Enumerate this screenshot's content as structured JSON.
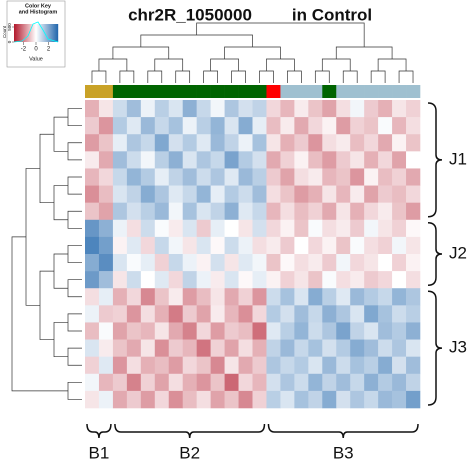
{
  "chart_data": {
    "type": "heatmap",
    "title": "chr2R_1050000",
    "subtitle": "in Control",
    "key": {
      "title": [
        "Color Key",
        "and Histogram"
      ],
      "xlabel": "Value",
      "ylabel": "Count",
      "ticks": [
        -2,
        0,
        2
      ],
      "count_ylim": [
        0,
        600
      ],
      "count_ticks": [
        0,
        500
      ]
    },
    "zlim": [
      -3.5,
      3.5
    ],
    "colors": [
      "#b2182b",
      "#ffffff",
      "#2166ac"
    ],
    "column_colors": [
      "#c9a227",
      "#c9a227",
      "#006400",
      "#006400",
      "#006400",
      "#006400",
      "#006400",
      "#006400",
      "#006400",
      "#006400",
      "#006400",
      "#006400",
      "#006400",
      "#ff0000",
      "#9fc0d0",
      "#9fc0d0",
      "#9fc0d0",
      "#006400",
      "#9fc0d0",
      "#9fc0d0",
      "#9fc0d0",
      "#9fc0d0",
      "#9fc0d0",
      "#9fc0d0"
    ],
    "row_groups": [
      "J1",
      "J2",
      "J3"
    ],
    "column_groups": [
      "B1",
      "B2",
      "B3"
    ],
    "values": [
      [
        -1.2,
        -0.4,
        0.8,
        1.5,
        0.3,
        1.1,
        0.6,
        1.8,
        0.9,
        0.2,
        1.3,
        0.7,
        1.0,
        -0.6,
        -1.1,
        -0.3,
        -0.9,
        -1.4,
        -0.5,
        0.2,
        -0.8,
        -1.2,
        -0.4,
        -0.7
      ],
      [
        -0.8,
        -1.6,
        1.2,
        0.5,
        1.6,
        0.9,
        1.4,
        0.3,
        1.1,
        1.7,
        0.6,
        1.9,
        0.4,
        -1.0,
        -0.3,
        -1.3,
        -0.6,
        -0.2,
        -1.5,
        -0.7,
        -0.9,
        0.1,
        -1.1,
        -0.5
      ],
      [
        -1.5,
        -0.9,
        0.4,
        1.3,
        0.9,
        2.0,
        0.7,
        1.2,
        0.5,
        1.6,
        1.0,
        0.3,
        1.4,
        -0.4,
        -1.2,
        -0.8,
        -1.6,
        -0.5,
        -0.3,
        -1.0,
        -0.6,
        -1.3,
        -0.2,
        -0.9
      ],
      [
        -0.3,
        -1.3,
        1.5,
        0.8,
        0.2,
        1.1,
        1.8,
        0.6,
        1.3,
        0.9,
        2.1,
        1.2,
        0.7,
        -1.3,
        -0.7,
        -0.2,
        -1.0,
        -1.5,
        -0.8,
        -0.4,
        -1.2,
        -0.6,
        -1.4,
        0.0
      ],
      [
        -1.1,
        -0.6,
        0.9,
        1.7,
        1.2,
        0.4,
        1.0,
        1.5,
        0.8,
        1.3,
        0.5,
        1.6,
        1.1,
        -0.8,
        -1.4,
        -0.5,
        -0.3,
        -1.1,
        -0.9,
        -1.6,
        -0.2,
        -1.0,
        -0.7,
        -1.3
      ],
      [
        -1.7,
        -1.0,
        0.6,
        1.0,
        1.9,
        1.3,
        0.5,
        0.9,
        1.7,
        0.4,
        1.2,
        0.8,
        1.5,
        -0.5,
        -0.9,
        -1.5,
        -1.2,
        -0.4,
        -1.1,
        -0.3,
        -1.4,
        -0.8,
        -1.0,
        -0.6
      ],
      [
        -0.9,
        -1.4,
        1.3,
        0.7,
        1.1,
        1.6,
        0.2,
        1.4,
        0.6,
        1.0,
        1.8,
        0.5,
        0.9,
        -1.1,
        -0.5,
        -1.0,
        -0.7,
        -1.3,
        -0.4,
        -1.2,
        -0.6,
        -0.3,
        -0.9,
        -1.5
      ],
      [
        2.4,
        1.8,
        0.3,
        -0.5,
        0.8,
        0.1,
        -0.3,
        0.6,
        -0.8,
        0.4,
        0.0,
        -0.4,
        0.7,
        -0.6,
        -0.2,
        -0.9,
        0.1,
        -0.5,
        -0.3,
        -0.8,
        0.2,
        -0.4,
        -0.7,
        -0.1
      ],
      [
        2.8,
        2.2,
        -0.2,
        0.5,
        -0.6,
        0.9,
        0.2,
        -0.4,
        0.6,
        -0.1,
        0.8,
        0.3,
        -0.5,
        -0.3,
        -0.8,
        0.0,
        -0.6,
        -0.2,
        -0.9,
        0.1,
        -0.5,
        -0.7,
        0.2,
        -0.4
      ],
      [
        1.9,
        2.6,
        0.6,
        0.1,
        0.4,
        -0.7,
        0.9,
        0.3,
        -0.2,
        0.7,
        -0.4,
        0.5,
        0.2,
        -0.9,
        -0.1,
        -0.5,
        -0.3,
        -0.8,
        0.2,
        -0.6,
        -0.4,
        0.0,
        -0.7,
        -0.2
      ],
      [
        2.3,
        1.5,
        -0.4,
        0.8,
        0.0,
        0.5,
        -0.6,
        1.0,
        0.3,
        -0.3,
        0.6,
        -0.1,
        0.4,
        -0.2,
        -0.7,
        -0.4,
        -0.9,
        0.1,
        -0.5,
        -0.3,
        -0.8,
        -0.6,
        0.0,
        -0.5
      ],
      [
        -0.5,
        0.4,
        -1.2,
        -0.6,
        -1.8,
        -0.9,
        -0.3,
        -1.5,
        -1.0,
        -0.4,
        -1.3,
        -0.7,
        -1.6,
        0.8,
        1.4,
        0.6,
        1.9,
        1.1,
        0.5,
        1.6,
        1.2,
        0.9,
        1.7,
        1.3
      ],
      [
        0.3,
        -0.8,
        -0.7,
        -1.6,
        -0.5,
        -1.2,
        -2.0,
        -0.8,
        -1.4,
        -0.3,
        -1.1,
        -1.7,
        -0.6,
        1.2,
        0.7,
        1.5,
        0.9,
        1.8,
        1.3,
        0.6,
        2.0,
        1.4,
        0.8,
        1.1
      ],
      [
        -1.0,
        0.1,
        -1.4,
        -0.9,
        -1.1,
        -0.4,
        -1.3,
        -1.9,
        -0.6,
        -1.5,
        -0.8,
        -1.0,
        -2.2,
        0.5,
        1.1,
        1.7,
        0.8,
        1.3,
        2.1,
        1.0,
        0.6,
        1.5,
        1.2,
        1.8
      ],
      [
        0.6,
        -0.3,
        -0.9,
        -1.3,
        -0.4,
        -1.7,
        -0.8,
        -1.1,
        -2.1,
        -0.7,
        -1.4,
        -0.5,
        -1.2,
        1.0,
        1.6,
        0.9,
        1.4,
        0.7,
        1.2,
        1.9,
        1.5,
        0.8,
        1.3,
        0.6
      ],
      [
        -0.7,
        0.5,
        -1.6,
        -0.5,
        -1.2,
        -1.0,
        -1.5,
        -0.6,
        -0.9,
        -1.8,
        -0.4,
        -1.3,
        -0.8,
        1.3,
        0.9,
        1.2,
        0.6,
        1.6,
        0.8,
        1.4,
        1.1,
        1.9,
        0.7,
        1.5
      ],
      [
        0.2,
        -1.1,
        -0.8,
        -1.9,
        -0.7,
        -1.4,
        -0.5,
        -1.2,
        -1.6,
        -0.9,
        -2.3,
        -0.6,
        -1.1,
        0.7,
        1.3,
        0.8,
        1.7,
        1.0,
        1.5,
        0.9,
        1.8,
        1.2,
        1.6,
        1.0
      ],
      [
        -0.4,
        0.3,
        -1.3,
        -0.8,
        -1.5,
        -0.6,
        -1.7,
        -1.0,
        -0.5,
        -1.4,
        -0.9,
        -1.8,
        -0.7,
        1.1,
        0.6,
        1.4,
        1.0,
        1.9,
        0.7,
        1.3,
        0.9,
        1.6,
        1.4,
        2.2
      ]
    ]
  }
}
